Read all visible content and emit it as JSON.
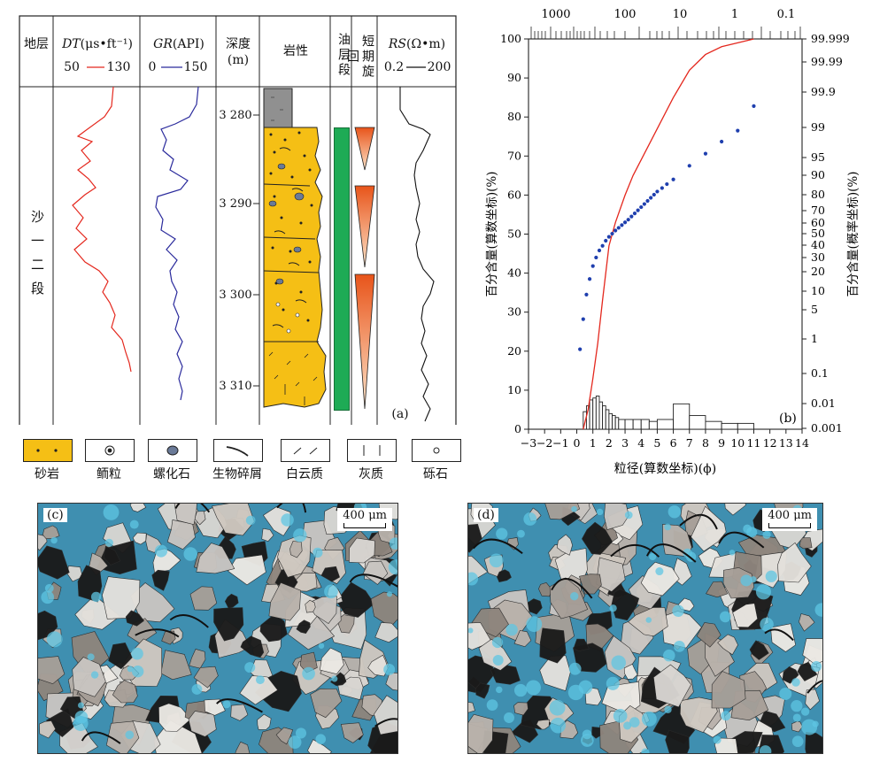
{
  "panel_a": {
    "label": "(a)",
    "headers": {
      "strata": "地层",
      "dt_symbol": "DT",
      "dt_unit": "(μs•ft⁻¹)",
      "dt_min": "50",
      "dt_max": "130",
      "gr_symbol": "GR",
      "gr_unit": "(API)",
      "gr_min": "0",
      "gr_max": "150",
      "depth": "深度",
      "depth_unit": "(m)",
      "lithology": "岩性",
      "oil_zone": "油层段",
      "cycle": "短期旋回",
      "rs_symbol": "RS",
      "rs_unit": "(Ω•m)",
      "rs_min": "0.2",
      "rs_max": "200"
    },
    "strata_name": "沙一二段",
    "depth_ticks": [
      "3 280",
      "3 290",
      "3 300",
      "3 310"
    ],
    "colors": {
      "dt": "#e4281e",
      "gr": "#2a2a9c",
      "rs": "#111111",
      "sand": "#f5bf15",
      "oil": "#1eab55",
      "cycle": "#ec7020",
      "shale": "#909090"
    }
  },
  "legend": [
    {
      "name": "sandstone",
      "label": "砂岩"
    },
    {
      "name": "oolite",
      "label": "鲕粒"
    },
    {
      "name": "gastropod",
      "label": "螺化石"
    },
    {
      "name": "bioclast",
      "label": "生物碎屑"
    },
    {
      "name": "dolomitic",
      "label": "白云质"
    },
    {
      "name": "calcareous",
      "label": "灰质"
    },
    {
      "name": "gravel",
      "label": "砾石"
    }
  ],
  "chart_data": {
    "type": "scatter",
    "label": "(b)",
    "xlabel": "粒径(算数坐标)(ϕ)",
    "ylabel_left": "百分含量(算数坐标)(%)",
    "ylabel_right": "百分含量(概率坐标)(%)",
    "xlim": [
      -3,
      14
    ],
    "ylim": [
      0,
      100
    ],
    "x_ticks": [
      -3,
      -2,
      -1,
      0,
      1,
      2,
      3,
      4,
      5,
      6,
      7,
      8,
      9,
      10,
      11,
      12,
      13,
      14
    ],
    "y_ticks": [
      0,
      10,
      20,
      30,
      40,
      50,
      60,
      70,
      80,
      90,
      100
    ],
    "top_axis_labels": [
      "1000",
      "100",
      "10",
      "1",
      "0.1"
    ],
    "right_axis_labels": [
      "99.999",
      "99.99",
      "99.9",
      "99",
      "95",
      "90",
      "80",
      "70",
      "60",
      "50",
      "40",
      "30",
      "20",
      "10",
      "5",
      "1",
      "0.1",
      "0.01",
      "0.001"
    ],
    "series": [
      {
        "kind": "probability_points",
        "x": [
          0.2,
          0.4,
          0.6,
          0.8,
          1.0,
          1.2,
          1.4,
          1.6,
          1.8,
          2.0,
          2.2,
          2.4,
          2.6,
          2.8,
          3.0,
          3.2,
          3.4,
          3.6,
          3.8,
          4.0,
          4.2,
          4.4,
          4.6,
          4.8,
          5.0,
          5.3,
          5.6,
          6.0,
          7.0,
          8.0,
          9.0,
          10.0,
          11.0
        ],
        "y": [
          20.5,
          28.2,
          34.5,
          38.5,
          41.8,
          44.0,
          45.8,
          47.0,
          48.3,
          49.3,
          50.1,
          50.9,
          51.6,
          52.3,
          53.0,
          53.7,
          54.5,
          55.3,
          56.1,
          56.9,
          57.7,
          58.5,
          59.3,
          60.1,
          60.9,
          61.8,
          62.8,
          64.0,
          67.5,
          70.6,
          73.7,
          76.5,
          82.8
        ]
      },
      {
        "kind": "cumulative_curve",
        "x": [
          0.4,
          0.7,
          1.0,
          1.3,
          1.6,
          2.0,
          2.4,
          3.0,
          3.5,
          4.0,
          5.0,
          6.0,
          7.0,
          8.0,
          9.0,
          10.0,
          11.0
        ],
        "y": [
          0,
          5,
          13,
          22,
          33,
          47,
          53,
          60,
          65,
          69,
          77,
          85,
          92,
          96,
          98,
          99,
          100
        ]
      }
    ],
    "histogram": {
      "bins_from": [
        0.4,
        0.6,
        0.8,
        1.0,
        1.2,
        1.4,
        1.6,
        1.8,
        2.0,
        2.2,
        2.4,
        2.6,
        3.0,
        3.5,
        4.0,
        4.5,
        5.0,
        6.0,
        7.0,
        8.0,
        9.0,
        10.0
      ],
      "bins_to": [
        0.6,
        0.8,
        1.0,
        1.2,
        1.4,
        1.6,
        1.8,
        2.0,
        2.2,
        2.4,
        2.6,
        3.0,
        3.5,
        4.0,
        4.5,
        5.0,
        6.0,
        7.0,
        8.0,
        9.0,
        10.0,
        11.0
      ],
      "values": [
        4.5,
        6.0,
        7.5,
        8.0,
        8.5,
        7.0,
        6.0,
        5.0,
        4.0,
        3.5,
        3.0,
        2.5,
        2.5,
        2.5,
        2.5,
        2.0,
        2.5,
        6.5,
        3.5,
        2.0,
        1.5,
        1.5
      ]
    }
  },
  "photos": [
    {
      "label": "(c)",
      "scale": "400 μm"
    },
    {
      "label": "(d)",
      "scale": "400 μm"
    }
  ]
}
